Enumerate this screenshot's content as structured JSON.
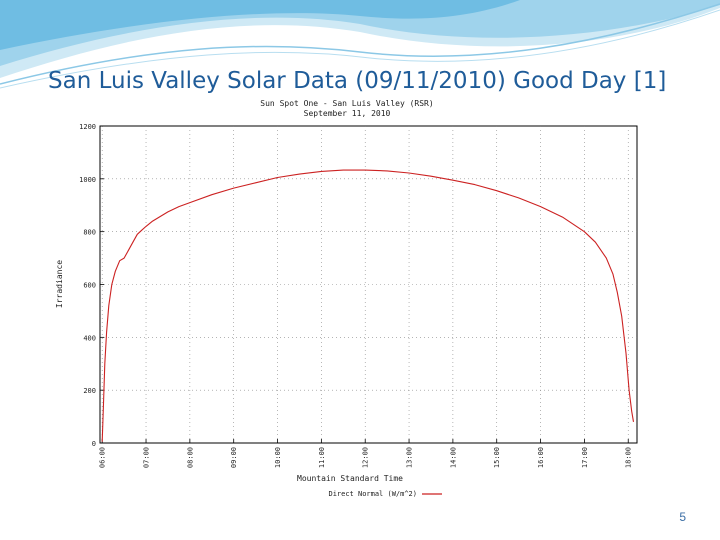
{
  "slide": {
    "title": "San Luis Valley Solar Data (09/11/2010) Good Day [1]",
    "number": "5",
    "accent_color": "#1f5c99"
  },
  "chart_data": {
    "type": "line",
    "title": "Sun Spot One - San Luis Valley (RSR)",
    "subtitle": "September 11, 2010",
    "xlabel": "Mountain Standard Time",
    "ylabel": "Irradiance",
    "x_ticks": [
      "06:00",
      "07:00",
      "08:00",
      "09:00",
      "10:00",
      "11:00",
      "12:00",
      "13:00",
      "14:00",
      "15:00",
      "16:00",
      "17:00",
      "18:00"
    ],
    "y_ticks": [
      "0",
      "200",
      "400",
      "600",
      "800",
      "1000",
      "1200"
    ],
    "xlim": [
      5.95,
      18.2
    ],
    "ylim": [
      0,
      1200
    ],
    "grid": true,
    "legend_position": "bottom",
    "series": [
      {
        "name": "Direct Normal (W/m^2)",
        "color": "#cc2222",
        "x": [
          6.0,
          6.03,
          6.06,
          6.1,
          6.15,
          6.22,
          6.3,
          6.4,
          6.5,
          6.6,
          6.7,
          6.8,
          6.9,
          7.0,
          7.15,
          7.3,
          7.5,
          7.75,
          8.0,
          8.5,
          9.0,
          9.5,
          10.0,
          10.5,
          11.0,
          11.5,
          12.0,
          12.5,
          13.0,
          13.5,
          14.0,
          14.5,
          15.0,
          15.5,
          16.0,
          16.5,
          17.0,
          17.25,
          17.5,
          17.65,
          17.75,
          17.85,
          17.95,
          18.02,
          18.08,
          18.12
        ],
        "values": [
          5,
          150,
          300,
          420,
          520,
          600,
          650,
          690,
          700,
          730,
          760,
          790,
          805,
          820,
          840,
          855,
          875,
          895,
          910,
          940,
          965,
          985,
          1005,
          1018,
          1028,
          1033,
          1033,
          1030,
          1022,
          1010,
          995,
          978,
          955,
          928,
          895,
          855,
          800,
          760,
          700,
          640,
          570,
          480,
          340,
          200,
          120,
          80
        ]
      }
    ]
  }
}
